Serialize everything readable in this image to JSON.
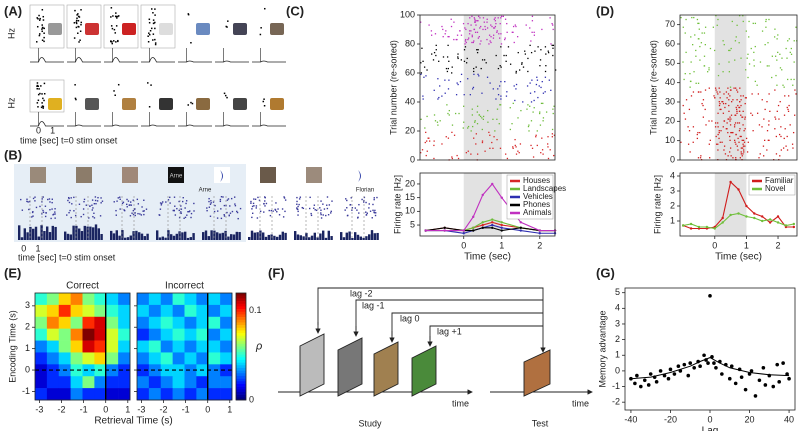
{
  "panel_labels": [
    "(A)",
    "(B)",
    "(C)",
    "(D)",
    "(E)",
    "(F)",
    "(G)"
  ],
  "panel_A": {
    "y_labels": [
      "Hz",
      "Hz"
    ],
    "xlim": [
      -0.6,
      1.8
    ],
    "xticks": [
      0,
      1
    ],
    "x_label": "time [sec] t=0 stim onset"
  },
  "panel_B": {
    "names": [
      "Arne",
      "Arne",
      "Florian"
    ],
    "xlim": [
      -0.4,
      2.4
    ],
    "xticks": [
      0,
      1
    ],
    "x_label": "time [sec] t=0 stim onset"
  },
  "panel_F": {
    "lags": [
      "lag -2",
      "lag -1",
      "lag 0",
      "lag +1"
    ],
    "time_labels": [
      "time",
      "time"
    ],
    "phases": [
      "Study",
      "Test"
    ]
  },
  "chart_data": [
    {
      "type": "raster",
      "y_label": "Trial number (re-sorted)",
      "xlim": [
        -1.15,
        2.4
      ],
      "ylim": [
        0,
        100
      ],
      "yticks": [
        0,
        20,
        40,
        60,
        80,
        100
      ],
      "shade": [
        0,
        1
      ]
    },
    {
      "type": "line",
      "x_label": "Time (sec)",
      "y_label": "Firing rate [Hz]",
      "xlim": [
        -1.15,
        2.4
      ],
      "ylim": [
        1,
        24
      ],
      "xticks": [
        0,
        1,
        2
      ],
      "yticks": [
        5,
        10,
        15,
        20
      ],
      "shade": [
        0,
        1
      ],
      "legend": "upper right",
      "x": [
        -1,
        -0.5,
        0,
        0.25,
        0.5,
        0.75,
        1,
        1.5,
        2,
        2.4
      ],
      "series": [
        {
          "name": "Houses",
          "color": "#d62728",
          "values": [
            3,
            4,
            3,
            4,
            5,
            6,
            5,
            4,
            3,
            3
          ]
        },
        {
          "name": "Landscapes",
          "color": "#6dbb3a",
          "values": [
            3,
            3,
            3,
            4,
            6,
            7,
            6,
            4,
            3,
            3
          ]
        },
        {
          "name": "Vehicles",
          "color": "#2e2eb0",
          "values": [
            3,
            3,
            2,
            3,
            4,
            5,
            4,
            3,
            2,
            2
          ]
        },
        {
          "name": "Phones",
          "color": "#000000",
          "values": [
            3,
            4,
            3,
            3,
            4,
            4,
            3,
            4,
            3,
            3
          ]
        },
        {
          "name": "Animals",
          "color": "#c030c0",
          "values": [
            3,
            3,
            3,
            8,
            16,
            20,
            15,
            6,
            3,
            3
          ]
        }
      ]
    },
    {
      "type": "raster",
      "y_label": "Trial number (re-sorted)",
      "xlim": [
        -1.1,
        2.6
      ],
      "ylim": [
        0,
        75
      ],
      "yticks": [
        0,
        10,
        20,
        30,
        40,
        50,
        60,
        70
      ],
      "shade": [
        0,
        1
      ]
    },
    {
      "type": "line",
      "x_label": "Time (sec)",
      "y_label": "Firing rate [Hz]",
      "xlim": [
        -1.1,
        2.6
      ],
      "ylim": [
        0,
        4.2
      ],
      "xticks": [
        0,
        1,
        2
      ],
      "yticks": [
        1,
        2,
        3,
        4
      ],
      "shade": [
        0,
        1
      ],
      "legend": "upper right",
      "x": [
        -1,
        -0.75,
        -0.5,
        -0.25,
        0,
        0.25,
        0.5,
        0.75,
        1,
        1.25,
        1.5,
        1.75,
        2,
        2.25,
        2.5
      ],
      "series": [
        {
          "name": "Familiar",
          "color": "#d01c1c",
          "values": [
            0.7,
            0.5,
            0.5,
            0.5,
            0.6,
            1.2,
            3.6,
            3.1,
            2.0,
            1.5,
            1.3,
            0.9,
            1.3,
            0.6,
            0.6
          ]
        },
        {
          "name": "Novel",
          "color": "#6fbf3a",
          "values": [
            0.7,
            0.8,
            0.6,
            0.6,
            0.5,
            0.9,
            1.4,
            1.5,
            1.3,
            1.2,
            1.0,
            1.1,
            0.9,
            0.7,
            0.8
          ]
        }
      ]
    },
    {
      "type": "heatmap",
      "x_label": "Retrieval Time (s)",
      "y_label": "Encoding Time (s)",
      "colorbar_label": "ρ",
      "xlim": [
        -3.2,
        1.1
      ],
      "ylim": [
        -1.4,
        3.6
      ],
      "xticks": [
        -3,
        -2,
        -1,
        0,
        1
      ],
      "yticks": [
        -1,
        0,
        1,
        2,
        3
      ],
      "clim": [
        0,
        0.12
      ],
      "cticks": [
        0,
        0.1
      ],
      "ref": {
        "x": 0,
        "y": 0
      },
      "series": [
        {
          "name": "Correct",
          "values": [
            [
              0.05,
              0.06,
              0.08,
              0.09,
              0.06,
              0.05,
              0.04,
              0.03
            ],
            [
              0.07,
              0.08,
              0.1,
              0.08,
              0.07,
              0.06,
              0.05,
              0.04
            ],
            [
              0.06,
              0.09,
              0.08,
              0.06,
              0.1,
              0.11,
              0.06,
              0.04
            ],
            [
              0.05,
              0.07,
              0.06,
              0.09,
              0.12,
              0.11,
              0.07,
              0.05
            ],
            [
              0.03,
              0.04,
              0.06,
              0.08,
              0.11,
              0.1,
              0.07,
              0.04
            ],
            [
              0.02,
              0.03,
              0.04,
              0.06,
              0.07,
              0.08,
              0.06,
              0.03
            ],
            [
              0.01,
              0.02,
              0.03,
              0.05,
              0.04,
              0.05,
              0.03,
              0.02
            ],
            [
              0.01,
              0.02,
              0.02,
              0.04,
              0.06,
              0.03,
              0.02,
              0.02
            ],
            [
              0.02,
              0.01,
              0.01,
              0.03,
              0.02,
              0.02,
              0.01,
              0.01
            ]
          ]
        },
        {
          "name": "Incorrect",
          "values": [
            [
              0.03,
              0.04,
              0.03,
              0.05,
              0.04,
              0.03,
              0.04,
              0.03
            ],
            [
              0.04,
              0.03,
              0.04,
              0.03,
              0.05,
              0.04,
              0.03,
              0.04
            ],
            [
              0.03,
              0.04,
              0.05,
              0.04,
              0.03,
              0.04,
              0.05,
              0.03
            ],
            [
              0.02,
              0.03,
              0.04,
              0.05,
              0.04,
              0.05,
              0.03,
              0.04
            ],
            [
              0.04,
              0.05,
              0.03,
              0.04,
              0.03,
              0.04,
              0.04,
              0.03
            ],
            [
              0.03,
              0.04,
              0.05,
              0.03,
              0.04,
              0.03,
              0.05,
              0.04
            ],
            [
              0.02,
              0.03,
              0.04,
              0.04,
              0.03,
              0.04,
              0.03,
              0.02
            ],
            [
              0.03,
              0.02,
              0.03,
              0.04,
              0.03,
              0.02,
              0.03,
              0.03
            ],
            [
              0.02,
              0.03,
              0.02,
              0.03,
              0.02,
              0.03,
              0.02,
              0.02
            ]
          ]
        }
      ]
    },
    {
      "type": "scatter",
      "x_label": "Lag",
      "y_label": "Memory advantage",
      "xlim": [
        -43,
        43
      ],
      "ylim": [
        -2.5,
        5.3
      ],
      "xticks": [
        -40,
        -20,
        0,
        20,
        40
      ],
      "yticks": [
        -2,
        -1,
        0,
        1,
        2,
        3,
        4,
        5
      ],
      "color": "#000000",
      "x": [
        -40,
        -38,
        -37,
        -35,
        -33,
        -31,
        -30,
        -28,
        -27,
        -25,
        -23,
        -21,
        -20,
        -18,
        -16,
        -15,
        -13,
        -11,
        -10,
        -8,
        -6,
        -5,
        -3,
        -2,
        -1,
        0,
        1,
        2,
        3,
        5,
        6,
        8,
        10,
        11,
        13,
        15,
        16,
        18,
        20,
        21,
        23,
        25,
        27,
        28,
        30,
        32,
        34,
        35,
        37,
        39,
        40
      ],
      "values": [
        -0.5,
        -0.8,
        -0.3,
        -1.0,
        -0.6,
        -0.9,
        -0.2,
        -0.4,
        -0.7,
        0.0,
        -0.3,
        -0.5,
        0.1,
        -0.2,
        0.3,
        0.0,
        0.4,
        -0.3,
        0.5,
        0.2,
        0.6,
        0.3,
        1.0,
        0.7,
        0.5,
        4.8,
        0.9,
        0.5,
        0.2,
        0.6,
        -0.2,
        0.4,
        -0.5,
        0.3,
        -0.8,
        0.1,
        -0.4,
        -1.2,
        -0.2,
        0.0,
        -1.6,
        -0.6,
        0.2,
        -0.9,
        -0.3,
        -1.0,
        0.4,
        -0.7,
        0.5,
        -0.2,
        -0.5
      ],
      "fit": {
        "x": [
          -40,
          -30,
          -20,
          -10,
          -5,
          0,
          5,
          10,
          20,
          30,
          40
        ],
        "values": [
          -0.5,
          -0.4,
          -0.1,
          0.3,
          0.6,
          0.85,
          0.5,
          0.2,
          -0.1,
          -0.25,
          -0.3
        ]
      }
    }
  ]
}
